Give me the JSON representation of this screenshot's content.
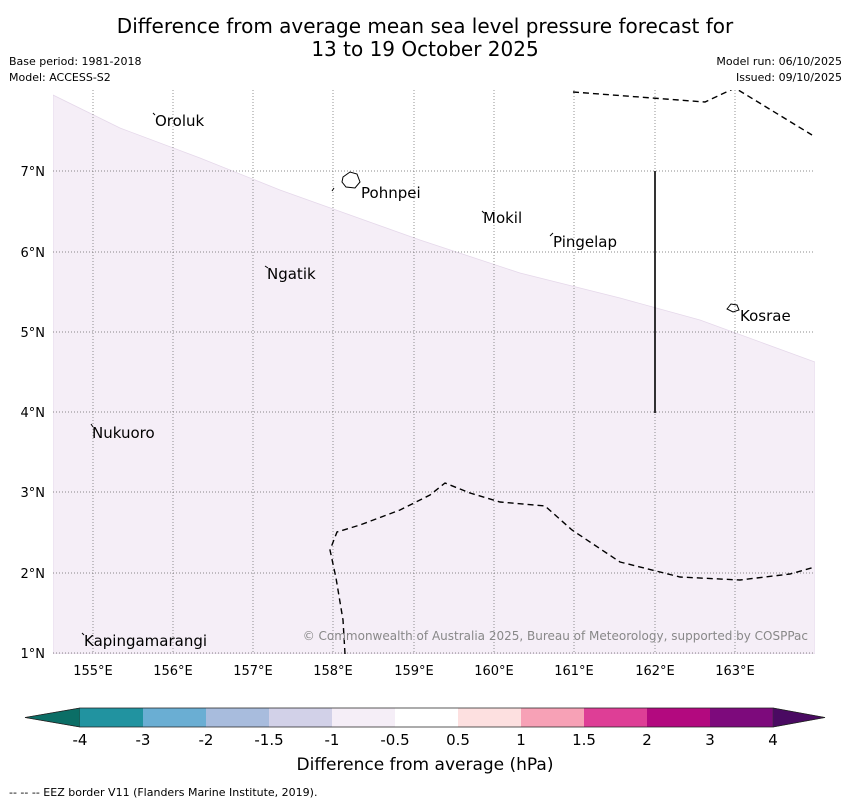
{
  "header": {
    "title_line1": "Difference from average mean sea level pressure forecast for",
    "title_line2": "13 to 19 October 2025",
    "base_period": "Base period: 1981-2018",
    "model": "Model: ACCESS-S2",
    "model_run": "Model run: 06/10/2025",
    "issued": "Issued: 09/10/2025"
  },
  "map": {
    "lon_labels": [
      "155°E",
      "156°E",
      "157°E",
      "158°E",
      "159°E",
      "160°E",
      "161°E",
      "162°E",
      "163°E"
    ],
    "lat_labels": [
      "7°N",
      "6°N",
      "5°N",
      "4°N",
      "3°N",
      "2°N",
      "1°N"
    ],
    "places": [
      {
        "name": "Oroluk"
      },
      {
        "name": "Pohnpei"
      },
      {
        "name": "Mokil"
      },
      {
        "name": "Pingelap"
      },
      {
        "name": "Ngatik"
      },
      {
        "name": "Kosrae"
      },
      {
        "name": "Nukuoro"
      },
      {
        "name": "Kapingamarangi"
      }
    ],
    "shaded_region_category": "-1 to -0.5",
    "copyright": "© Commonwealth of Australia 2025, Bureau of Meteorology, supported by COSPPac"
  },
  "colorbar": {
    "title": "Difference from average (hPa)",
    "tick_labels": [
      "-4",
      "-3",
      "-2",
      "-1.5",
      "-1",
      "-0.5",
      "0.5",
      "1",
      "1.5",
      "2",
      "3",
      "4"
    ],
    "colors": [
      "#0b6e66",
      "#2193a0",
      "#6aaed3",
      "#a8bcdd",
      "#d2d1e8",
      "#f5eef7",
      "#ffffff",
      "#fde0e0",
      "#f7a1b6",
      "#de3e96",
      "#b3097f",
      "#7d0a7c",
      "#4a0a62"
    ]
  },
  "footer": {
    "eez_note": "--  --  -- EEZ border V11 (Flanders Marine Institute, 2019)."
  }
}
